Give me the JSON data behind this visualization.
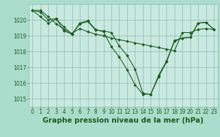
{
  "title": "Graphe pression niveau de la mer (hPa)",
  "background_color": "#aaddcc",
  "plot_bg_color": "#c8e8e0",
  "grid_color": "#88bbaa",
  "line_color": "#1a5c1a",
  "marker_color": "#1a5c1a",
  "xlim": [
    -0.5,
    23.5
  ],
  "ylim": [
    1014.5,
    1021.0
  ],
  "yticks": [
    1015,
    1016,
    1017,
    1018,
    1019,
    1020
  ],
  "xticks": [
    0,
    1,
    2,
    3,
    4,
    5,
    6,
    7,
    8,
    9,
    10,
    11,
    12,
    13,
    14,
    15,
    16,
    17,
    18,
    19,
    20,
    21,
    22,
    23
  ],
  "series": [
    [
      1020.6,
      1020.6,
      1020.2,
      1019.75,
      1019.4,
      1019.15,
      1019.45,
      1019.25,
      1019.1,
      1019.0,
      1018.85,
      1018.75,
      1018.65,
      1018.55,
      1018.45,
      1018.35,
      1018.25,
      1018.15,
      1018.05,
      1019.2,
      1019.2,
      1019.4,
      1019.45,
      1019.4
    ],
    [
      1020.6,
      1020.5,
      1020.0,
      1020.1,
      1019.3,
      1019.1,
      1019.75,
      1019.9,
      1019.35,
      1019.3,
      1019.2,
      1018.35,
      1017.75,
      1016.9,
      1015.35,
      1015.3,
      1016.5,
      1017.4,
      1018.7,
      1018.85,
      1018.9,
      1019.8,
      1019.85,
      1019.4
    ],
    [
      1020.6,
      1020.2,
      1019.8,
      1020.05,
      1019.55,
      1019.1,
      1019.8,
      1019.95,
      1019.4,
      1019.25,
      1018.3,
      1017.65,
      1016.85,
      1015.9,
      1015.3,
      1015.3,
      1016.4,
      1017.35,
      1018.65,
      1018.85,
      1018.9,
      1019.8,
      1019.85,
      1019.4
    ]
  ],
  "title_fontsize": 7.5,
  "tick_fontsize": 5.5,
  "tick_color": "#1a5c1a",
  "linewidth": 0.8,
  "markersize": 2.0
}
